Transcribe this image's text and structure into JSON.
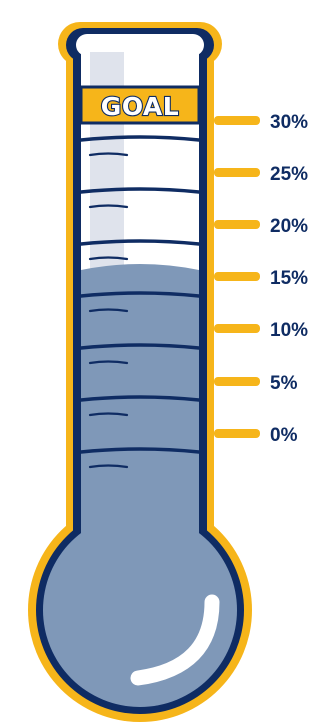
{
  "goal_label": "GOAL",
  "scale": [
    {
      "label": "30%"
    },
    {
      "label": "25%"
    },
    {
      "label": "20%"
    },
    {
      "label": "15%"
    },
    {
      "label": "10%"
    },
    {
      "label": "5%"
    },
    {
      "label": "0%"
    }
  ],
  "fill_level": "15%",
  "colors": {
    "gold": "#f6b51a",
    "navy": "#0f2c63",
    "fill": "#7f98b8",
    "glass": "#ffffff",
    "highlight": "#dfe3ec"
  }
}
